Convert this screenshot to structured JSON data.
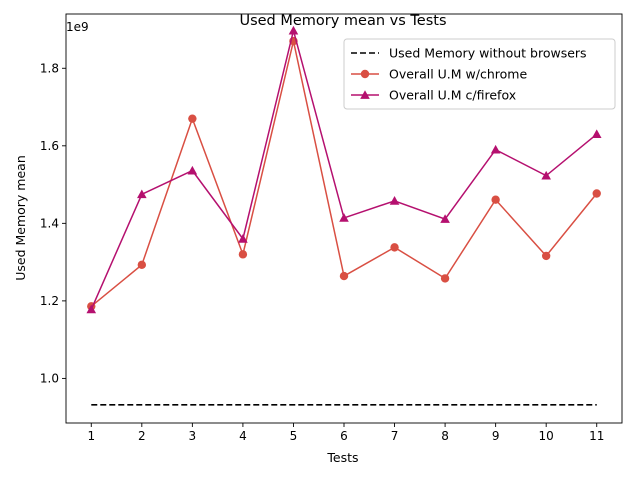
{
  "chart_data": {
    "type": "line",
    "title": "Used Memory mean vs Tests",
    "xlabel": "Tests",
    "ylabel": "Used Memory mean",
    "offset_label": "1e9",
    "scale": 1000000000,
    "x": [
      1,
      2,
      3,
      4,
      5,
      6,
      7,
      8,
      9,
      10,
      11
    ],
    "xlim": [
      0.5,
      11.5
    ],
    "ylim": [
      0.885,
      1.94
    ],
    "yticks": [
      1.0,
      1.2,
      1.4,
      1.6,
      1.8
    ],
    "ytick_labels": [
      "1.0",
      "1.2",
      "1.4",
      "1.6",
      "1.8"
    ],
    "xtick_labels": [
      "1",
      "2",
      "3",
      "4",
      "5",
      "6",
      "7",
      "8",
      "9",
      "10",
      "11"
    ],
    "grid": false,
    "legend_position": "top-right",
    "series": [
      {
        "name": "Used Memory without browsers",
        "color": "#000000",
        "style": "dashed",
        "marker": "none",
        "values": [
          0.932,
          0.932,
          0.932,
          0.932,
          0.932,
          0.932,
          0.932,
          0.932,
          0.932,
          0.932,
          0.932
        ]
      },
      {
        "name": "Overall U.M w/chrome",
        "color": "#d94f43",
        "style": "solid",
        "marker": "circle",
        "values": [
          1.186,
          1.293,
          1.67,
          1.32,
          1.87,
          1.264,
          1.338,
          1.258,
          1.461,
          1.316,
          1.477
        ]
      },
      {
        "name": "Overall U.M c/firefox",
        "color": "#b5106f",
        "style": "solid",
        "marker": "triangle",
        "values": [
          1.178,
          1.475,
          1.536,
          1.36,
          1.897,
          1.414,
          1.458,
          1.411,
          1.59,
          1.523,
          1.63
        ]
      }
    ]
  }
}
